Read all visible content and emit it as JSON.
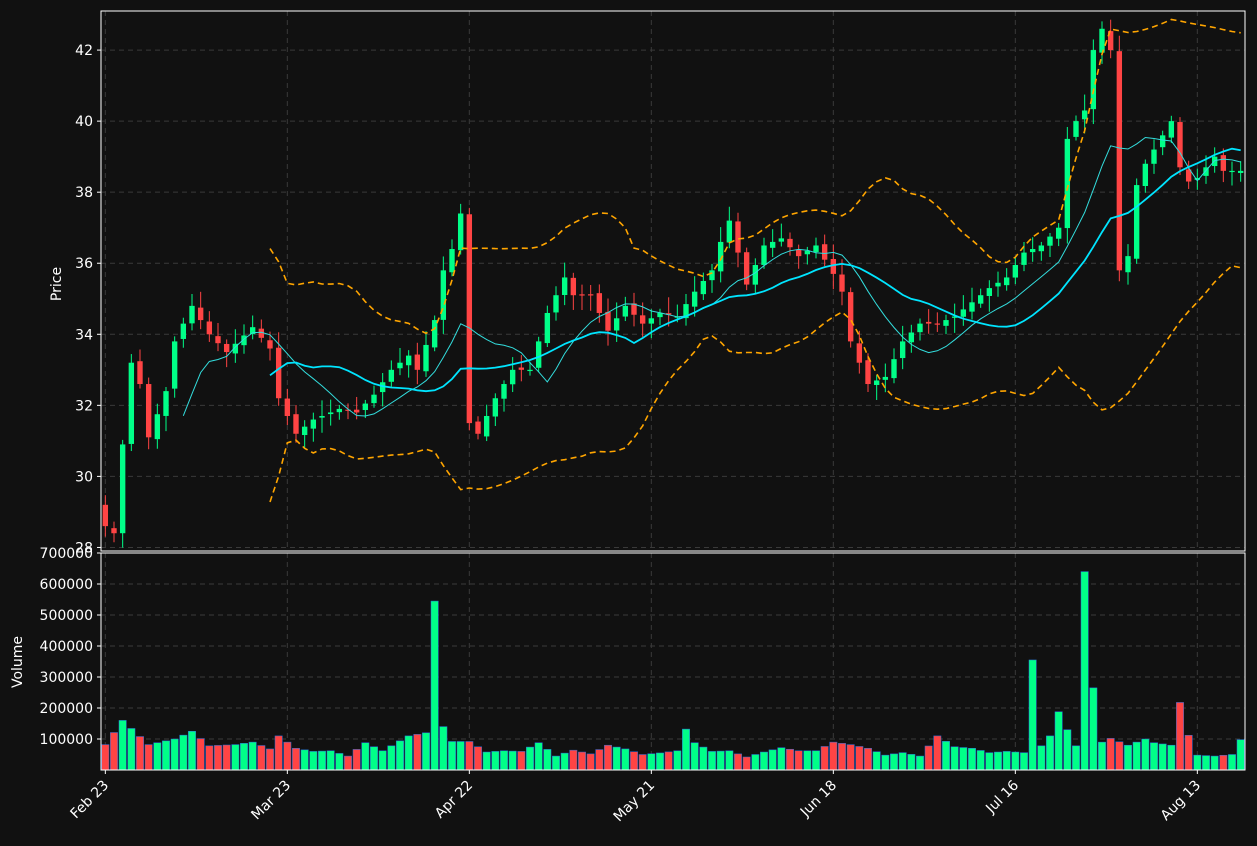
{
  "theme": {
    "background": "#111111",
    "axes_edge": "#ffffff",
    "grid": "#3a3a3a",
    "text": "#ffffff",
    "up_color": "#00ff88",
    "down_color": "#ff4444",
    "sma_fast_color": "#33dddd",
    "sma_slow_color": "#00e5ff",
    "band_color": "#ffa500"
  },
  "chart_data": {
    "type": "candlestick",
    "title": "",
    "panels": {
      "price": {
        "ylabel": "Price",
        "ylim": [
          27.9,
          43.1
        ],
        "yticks": [
          28,
          30,
          32,
          34,
          36,
          38,
          40,
          42
        ]
      },
      "volume": {
        "ylabel": "Volume",
        "ylim": [
          0,
          700000
        ],
        "yticks": [
          100000,
          200000,
          300000,
          400000,
          500000,
          600000,
          700000
        ]
      }
    },
    "x_tick_labels": [
      "Feb 23",
      "Mar 23",
      "Apr 22",
      "May 21",
      "Jun 18",
      "Jul 16",
      "Aug 13"
    ],
    "x_tick_index": [
      0,
      21,
      42,
      63,
      84,
      105,
      126
    ],
    "num_bars": 132,
    "series": [
      {
        "name": "SMA 20",
        "style": "thin line"
      },
      {
        "name": "SMA 50",
        "style": "thick line"
      },
      {
        "name": "Bollinger upper",
        "style": "dashed line"
      },
      {
        "name": "Bollinger lower",
        "style": "dashed line"
      }
    ],
    "grid": true,
    "legend": "none",
    "anchors": {
      "close": [
        [
          0,
          28.6
        ],
        [
          1,
          28.4
        ],
        [
          2,
          30.9
        ],
        [
          3,
          33.2
        ],
        [
          4,
          32.6
        ],
        [
          5,
          31.1
        ],
        [
          7,
          32.4
        ],
        [
          8,
          33.8
        ],
        [
          10,
          34.8
        ],
        [
          12,
          34.0
        ],
        [
          14,
          33.5
        ],
        [
          17,
          34.2
        ],
        [
          19,
          33.6
        ],
        [
          20,
          32.2
        ],
        [
          21,
          31.7
        ],
        [
          22,
          31.2
        ],
        [
          24,
          31.6
        ],
        [
          27,
          31.9
        ],
        [
          29,
          31.8
        ],
        [
          31,
          32.3
        ],
        [
          33,
          33.0
        ],
        [
          35,
          33.4
        ],
        [
          36,
          33.0
        ],
        [
          38,
          34.4
        ],
        [
          39,
          35.8
        ],
        [
          40,
          36.4
        ],
        [
          41,
          37.4
        ],
        [
          42,
          31.5
        ],
        [
          43,
          31.2
        ],
        [
          45,
          32.2
        ],
        [
          47,
          33.0
        ],
        [
          49,
          33.0
        ],
        [
          51,
          34.6
        ],
        [
          53,
          35.6
        ],
        [
          54,
          35.1
        ],
        [
          56,
          35.1
        ],
        [
          58,
          34.1
        ],
        [
          60,
          34.8
        ],
        [
          62,
          34.3
        ],
        [
          64,
          34.6
        ],
        [
          66,
          34.5
        ],
        [
          68,
          35.2
        ],
        [
          70,
          35.8
        ],
        [
          71,
          36.6
        ],
        [
          72,
          37.2
        ],
        [
          74,
          35.4
        ],
        [
          76,
          36.5
        ],
        [
          78,
          36.7
        ],
        [
          80,
          36.2
        ],
        [
          82,
          36.5
        ],
        [
          84,
          35.7
        ],
        [
          85,
          35.2
        ],
        [
          86,
          33.8
        ],
        [
          88,
          32.6
        ],
        [
          90,
          32.8
        ],
        [
          92,
          33.8
        ],
        [
          94,
          34.3
        ],
        [
          96,
          34.3
        ],
        [
          98,
          34.5
        ],
        [
          100,
          34.9
        ],
        [
          102,
          35.3
        ],
        [
          104,
          35.6
        ],
        [
          106,
          36.3
        ],
        [
          108,
          36.5
        ],
        [
          110,
          37.0
        ],
        [
          111,
          39.5
        ],
        [
          112,
          40.0
        ],
        [
          113,
          40.3
        ],
        [
          114,
          42.0
        ],
        [
          115,
          42.6
        ],
        [
          116,
          42.0
        ],
        [
          117,
          35.8
        ],
        [
          118,
          36.2
        ],
        [
          119,
          38.2
        ],
        [
          120,
          38.8
        ],
        [
          122,
          39.6
        ],
        [
          123,
          40.0
        ],
        [
          124,
          38.7
        ],
        [
          125,
          38.3
        ],
        [
          126,
          38.4
        ],
        [
          128,
          39.0
        ],
        [
          129,
          38.6
        ],
        [
          131,
          38.6
        ]
      ],
      "volume": [
        [
          0,
          82000
        ],
        [
          2,
          160000
        ],
        [
          5,
          82000
        ],
        [
          8,
          100000
        ],
        [
          10,
          125000
        ],
        [
          12,
          78000
        ],
        [
          15,
          82000
        ],
        [
          17,
          90000
        ],
        [
          19,
          68000
        ],
        [
          20,
          110000
        ],
        [
          22,
          70000
        ],
        [
          24,
          60000
        ],
        [
          26,
          62000
        ],
        [
          28,
          45000
        ],
        [
          30,
          88000
        ],
        [
          32,
          62000
        ],
        [
          35,
          110000
        ],
        [
          37,
          120000
        ],
        [
          38,
          545000
        ],
        [
          39,
          140000
        ],
        [
          40,
          92000
        ],
        [
          42,
          92000
        ],
        [
          44,
          58000
        ],
        [
          46,
          62000
        ],
        [
          48,
          60000
        ],
        [
          50,
          88000
        ],
        [
          52,
          45000
        ],
        [
          54,
          64000
        ],
        [
          56,
          52000
        ],
        [
          58,
          80000
        ],
        [
          60,
          68000
        ],
        [
          62,
          50000
        ],
        [
          64,
          55000
        ],
        [
          66,
          62000
        ],
        [
          67,
          132000
        ],
        [
          68,
          88000
        ],
        [
          70,
          60000
        ],
        [
          72,
          62000
        ],
        [
          74,
          42000
        ],
        [
          76,
          58000
        ],
        [
          78,
          72000
        ],
        [
          80,
          62000
        ],
        [
          82,
          62000
        ],
        [
          84,
          90000
        ],
        [
          86,
          82000
        ],
        [
          88,
          70000
        ],
        [
          90,
          48000
        ],
        [
          92,
          56000
        ],
        [
          94,
          45000
        ],
        [
          96,
          110000
        ],
        [
          98,
          75000
        ],
        [
          100,
          70000
        ],
        [
          102,
          56000
        ],
        [
          104,
          60000
        ],
        [
          106,
          56000
        ],
        [
          107,
          355000
        ],
        [
          108,
          78000
        ],
        [
          109,
          110000
        ],
        [
          110,
          188000
        ],
        [
          111,
          130000
        ],
        [
          112,
          78000
        ],
        [
          113,
          640000
        ],
        [
          114,
          265000
        ],
        [
          115,
          90000
        ],
        [
          116,
          102000
        ],
        [
          118,
          80000
        ],
        [
          120,
          100000
        ],
        [
          121,
          88000
        ],
        [
          123,
          80000
        ],
        [
          124,
          218000
        ],
        [
          125,
          112000
        ],
        [
          126,
          48000
        ],
        [
          128,
          45000
        ],
        [
          130,
          50000
        ],
        [
          131,
          98000
        ]
      ]
    }
  }
}
